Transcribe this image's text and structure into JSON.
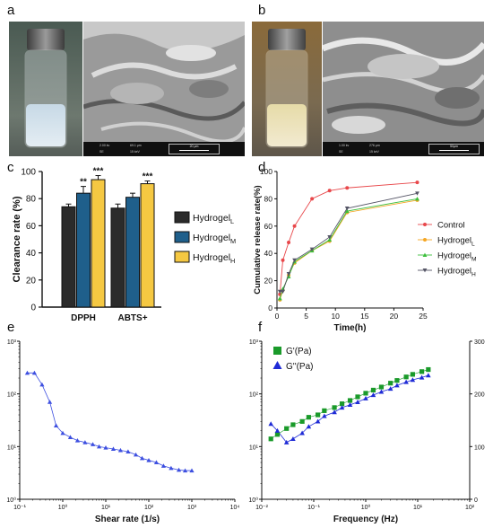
{
  "panel_labels": {
    "a": "a",
    "b": "b",
    "c": "c",
    "d": "d",
    "e": "e",
    "f": "f"
  },
  "sem_a": {
    "meta": [
      "2.00 kv",
      "69.1 μm",
      "15 keV",
      "SE"
    ],
    "scale": "20 μm"
  },
  "sem_b": {
    "meta": [
      "1.00 kv",
      "276 μm",
      "15 keV",
      "SE"
    ],
    "scale": "50μm"
  },
  "colors": {
    "hydrogel_L": "#2b2b2b",
    "hydrogel_M": "#1f5f8b",
    "hydrogel_H": "#f5c842",
    "control_line": "#e8474a",
    "L_line": "#f5a623",
    "M_line": "#3cbf3c",
    "H_line": "#555566",
    "shear_line": "#3d4fe0",
    "g_prime": "#1a9a2a",
    "g_double": "#1f2bd6"
  },
  "chart_data": [
    {
      "type": "bar",
      "ylabel": "Clearance rate (%)",
      "ylim": [
        0,
        100
      ],
      "yticks": [
        0,
        20,
        40,
        60,
        80,
        100
      ],
      "categories": [
        "DPPH",
        "ABTS+"
      ],
      "series": [
        {
          "name_base": "Hydrogel",
          "name_sub": "L",
          "values": [
            74,
            73
          ],
          "errors": [
            2,
            3
          ]
        },
        {
          "name_base": "Hydrogel",
          "name_sub": "M",
          "values": [
            84,
            81
          ],
          "errors": [
            5,
            3
          ]
        },
        {
          "name_base": "Hydrogel",
          "name_sub": "H",
          "values": [
            94,
            91
          ],
          "errors": [
            3,
            2
          ]
        }
      ],
      "significance": [
        [
          "",
          "**",
          "***"
        ],
        [
          "",
          "",
          "***"
        ]
      ]
    },
    {
      "type": "line",
      "xlabel": "Time(h)",
      "ylabel": "Cumulative release rate(%)",
      "xlim": [
        0,
        25
      ],
      "ylim": [
        0,
        100
      ],
      "xticks": [
        0,
        5,
        10,
        15,
        20,
        25
      ],
      "yticks": [
        0,
        20,
        40,
        60,
        80,
        100
      ],
      "x": [
        0.5,
        1,
        2,
        3,
        6,
        9,
        12,
        24
      ],
      "series": [
        {
          "name": "Control",
          "values": [
            10,
            35,
            48,
            60,
            80,
            86,
            88,
            92
          ]
        },
        {
          "name_base": "Hydrogel",
          "name_sub": "L",
          "values": [
            6,
            13,
            24,
            33,
            42,
            49,
            70,
            79
          ]
        },
        {
          "name_base": "Hydrogel",
          "name_sub": "M",
          "values": [
            7,
            14,
            23,
            34,
            42,
            50,
            71,
            80
          ]
        },
        {
          "name_base": "Hydrogel",
          "name_sub": "H",
          "values": [
            12,
            12,
            25,
            35,
            43,
            52,
            73,
            84
          ]
        }
      ]
    },
    {
      "type": "line",
      "xlabel": "Shear rate (1/s)",
      "x_scale": "log",
      "y_scale": "log",
      "xticks": [
        "10⁻¹",
        "10⁰",
        "10¹",
        "10²",
        "10³",
        "10⁴"
      ],
      "yticks": [
        "10⁰",
        "10¹",
        "10²",
        "10³"
      ],
      "x": [
        0.15,
        0.22,
        0.33,
        0.5,
        0.7,
        1.0,
        1.5,
        2.2,
        3.3,
        5,
        7,
        10,
        15,
        22,
        33,
        50,
        70,
        100,
        150,
        220,
        330,
        500,
        700,
        1000
      ],
      "values": [
        250,
        250,
        150,
        70,
        25,
        18,
        15,
        13,
        12,
        11,
        10,
        9.5,
        9,
        8.5,
        8,
        7,
        6,
        5.5,
        5,
        4.3,
        3.9,
        3.6,
        3.5,
        3.5
      ]
    },
    {
      "type": "scatter",
      "xlabel": "Frequency (Hz)",
      "x_scale": "log",
      "y_scale": "log",
      "xticks": [
        "10⁻²",
        "10⁻¹",
        "10⁰",
        "10¹",
        "10²"
      ],
      "yticks": [
        "10⁰",
        "10¹",
        "10²",
        "10³"
      ],
      "y2ticks": [
        "0",
        "100",
        "200",
        "300"
      ],
      "legend": "top-left",
      "x": [
        0.015,
        0.02,
        0.03,
        0.04,
        0.06,
        0.08,
        0.12,
        0.16,
        0.25,
        0.35,
        0.5,
        0.7,
        1.0,
        1.4,
        2,
        3,
        4,
        6,
        8,
        12,
        16
      ],
      "series": [
        {
          "name": "G'(Pa)",
          "values": [
            14,
            17,
            22,
            26,
            30,
            36,
            40,
            48,
            55,
            65,
            75,
            88,
            103,
            118,
            135,
            160,
            180,
            210,
            235,
            265,
            290
          ]
        },
        {
          "name": "G''(Pa)",
          "values": [
            27,
            20,
            12,
            14,
            18,
            24,
            30,
            38,
            45,
            55,
            62,
            70,
            82,
            95,
            110,
            125,
            145,
            168,
            185,
            205,
            225
          ]
        }
      ]
    }
  ]
}
